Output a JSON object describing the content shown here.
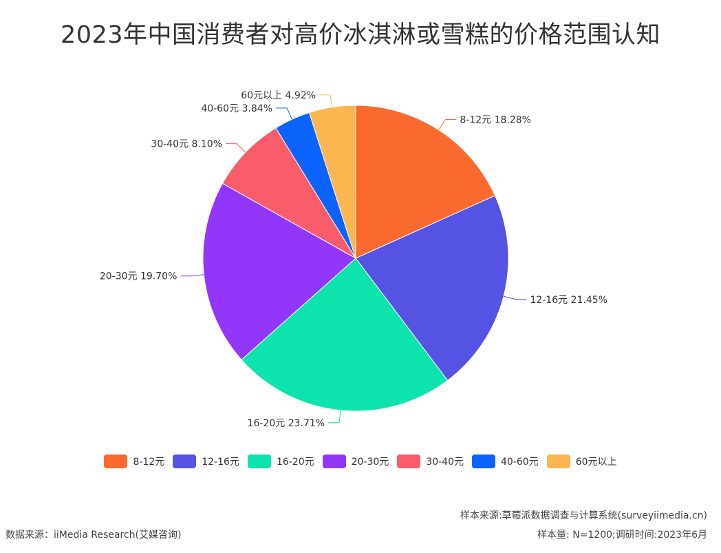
{
  "chart_data": {
    "type": "pie",
    "title": "2023年中国消费者对高价冰淇淋或雪糕的价格范围认知",
    "slices": [
      {
        "label": "8-12元",
        "value": 18.28,
        "value_label": "18.28%",
        "color": "#FA6A2F"
      },
      {
        "label": "12-16元",
        "value": 21.45,
        "value_label": "21.45%",
        "color": "#5453E3"
      },
      {
        "label": "16-20元",
        "value": 23.71,
        "value_label": "23.71%",
        "color": "#0DE3AD"
      },
      {
        "label": "20-30元",
        "value": 19.7,
        "value_label": "19.70%",
        "color": "#9237FA"
      },
      {
        "label": "30-40元",
        "value": 8.1,
        "value_label": "8.10%",
        "color": "#FA5C6A"
      },
      {
        "label": "40-60元",
        "value": 3.84,
        "value_label": "3.84%",
        "color": "#0A63FA"
      },
      {
        "label": "60元以上",
        "value": 4.92,
        "value_label": "4.92%",
        "color": "#FCB64F"
      }
    ],
    "legend_position": "bottom"
  },
  "footer": {
    "sample_source": "样本来源:草莓派数据调查与计算系统(surveyiimedia.cn)",
    "sample_size": "样本量: N=1200;调研时间:2023年6月",
    "data_source": "数据来源：iiMedia Research(艾媒咨询)"
  }
}
